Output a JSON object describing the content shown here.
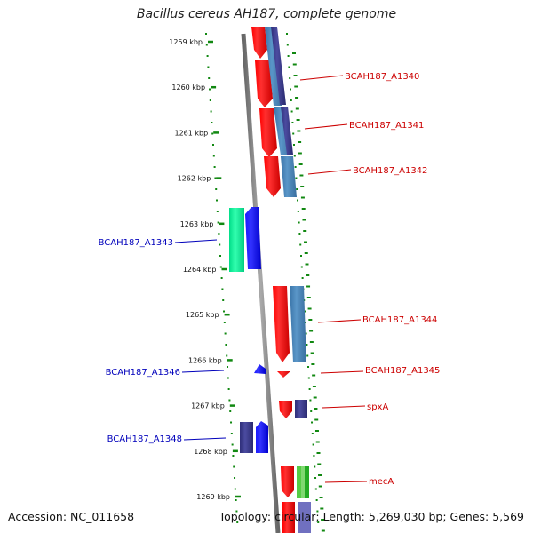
{
  "title": "Bacillus cereus AH187, complete genome",
  "accession": "Accession: NC_011658",
  "summary": "Topology: circular; Length: 5,269,030 bp; Genes: 5,569",
  "ruler": [
    "1259 kbp",
    "1260 kbp",
    "1261 kbp",
    "1262 kbp",
    "1263 kbp",
    "1264 kbp",
    "1265 kbp",
    "1266 kbp",
    "1267 kbp",
    "1268 kbp",
    "1269 kbp"
  ],
  "forward_labels": [
    "BCAH187_A1340",
    "BCAH187_A1341",
    "BCAH187_A1342",
    "BCAH187_A1344",
    "BCAH187_A1345",
    "spxA",
    "mecA"
  ],
  "reverse_labels": [
    "BCAH187_A1343",
    "BCAH187_A1346",
    "BCAH187_A1348"
  ],
  "colors": {
    "forward_label": "#cc0000",
    "reverse_label": "#0000bb",
    "cds_red": "#ff0000",
    "cds_blue": "#0000ff",
    "cds_steel": "#4682b4",
    "cds_purple": "#3b3b8f",
    "cds_green": "#22bb22",
    "cds_teal": "#00ee99",
    "axis": "#888888",
    "tick": "#118811"
  }
}
